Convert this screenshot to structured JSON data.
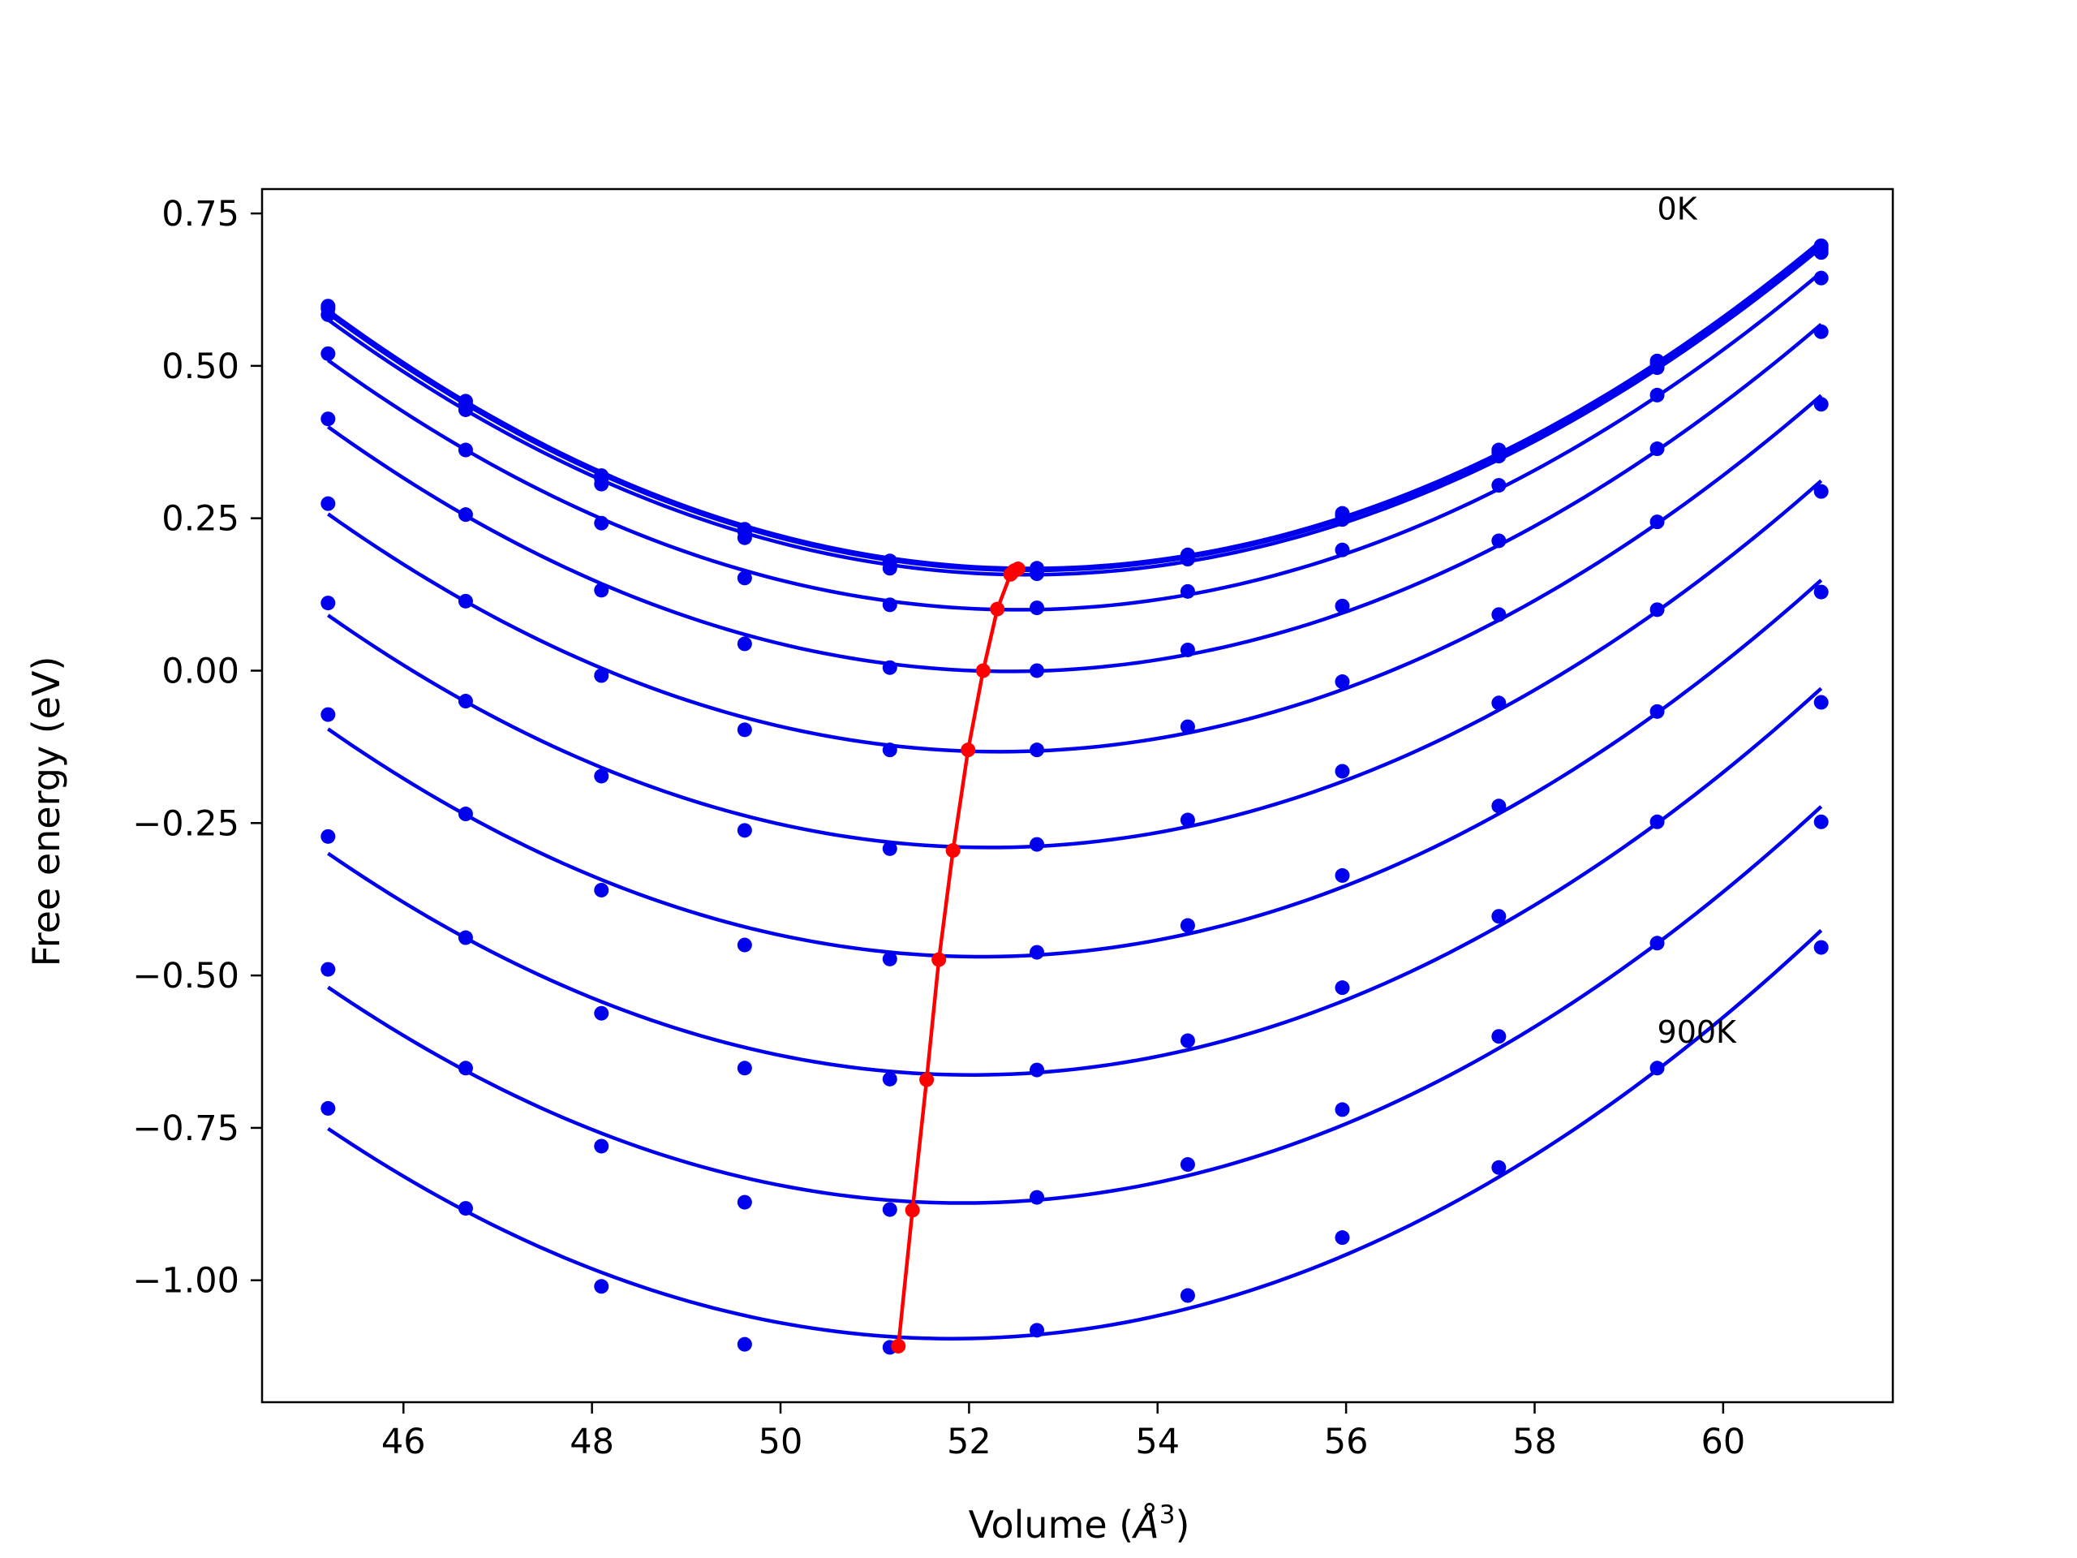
{
  "chart_data": {
    "type": "line",
    "title": "",
    "xlabel_text": "Volume (",
    "xlabel_unit_base": "Å",
    "xlabel_unit_exp": "3",
    "xlabel_close": ")",
    "ylabel": "Free energy (eV)",
    "xlim": [
      44.5,
      61.8
    ],
    "ylim": [
      -1.2,
      0.79
    ],
    "xticks": [
      46,
      48,
      50,
      52,
      54,
      56,
      58,
      60
    ],
    "xtick_labels": [
      "46",
      "48",
      "50",
      "52",
      "54",
      "56",
      "58",
      "60"
    ],
    "yticks": [
      0.75,
      0.5,
      0.25,
      0.0,
      -0.25,
      -0.5,
      -0.75,
      -1.0
    ],
    "ytick_labels": [
      "0.75",
      "0.50",
      "0.25",
      "0.00",
      "−0.25",
      "−0.50",
      "−0.75",
      "−1.00"
    ],
    "grid": false,
    "x_volumes": [
      45.2,
      46.66,
      48.1,
      49.62,
      51.16,
      52.72,
      54.32,
      55.96,
      57.62,
      59.3,
      61.04
    ],
    "series": [
      {
        "values": [
          0.598,
          0.442,
          0.32,
          0.232,
          0.18,
          0.168,
          0.19,
          0.258,
          0.362,
          0.508,
          0.697
        ]
      },
      {
        "values": [
          0.594,
          0.437,
          0.315,
          0.228,
          0.177,
          0.165,
          0.188,
          0.254,
          0.358,
          0.504,
          0.692
        ]
      },
      {
        "values": [
          0.584,
          0.428,
          0.306,
          0.218,
          0.168,
          0.159,
          0.183,
          0.248,
          0.352,
          0.497,
          0.686
        ]
      },
      {
        "values": [
          0.52,
          0.362,
          0.242,
          0.152,
          0.108,
          0.103,
          0.13,
          0.198,
          0.304,
          0.452,
          0.644
        ]
      },
      {
        "values": [
          0.413,
          0.256,
          0.132,
          0.044,
          0.005,
          0.0,
          0.034,
          0.106,
          0.213,
          0.364,
          0.556
        ]
      },
      {
        "values": [
          0.274,
          0.114,
          -0.008,
          -0.097,
          -0.13,
          -0.13,
          -0.092,
          -0.018,
          0.092,
          0.244,
          0.437
        ]
      },
      {
        "values": [
          0.111,
          -0.05,
          -0.173,
          -0.262,
          -0.292,
          -0.285,
          -0.245,
          -0.165,
          -0.053,
          0.1,
          0.294
        ]
      },
      {
        "values": [
          -0.072,
          -0.235,
          -0.36,
          -0.45,
          -0.473,
          -0.462,
          -0.418,
          -0.336,
          -0.222,
          -0.067,
          0.129
        ]
      },
      {
        "values": [
          -0.272,
          -0.438,
          -0.562,
          -0.652,
          -0.67,
          -0.655,
          -0.607,
          -0.52,
          -0.403,
          -0.248,
          -0.052
        ]
      },
      {
        "values": [
          -0.49,
          -0.652,
          -0.78,
          -0.872,
          -0.884,
          -0.864,
          -0.81,
          -0.72,
          -0.6,
          -0.447,
          -0.248
        ]
      },
      {
        "values": [
          -0.718,
          -0.882,
          -1.01,
          -1.105,
          -1.11,
          -1.082,
          -1.025,
          -0.93,
          -0.815,
          -0.652,
          -0.454
        ]
      }
    ],
    "minima": {
      "x": [
        52.52,
        52.48,
        52.44,
        52.3,
        52.15,
        51.99,
        51.83,
        51.68,
        51.55,
        51.4,
        51.25
      ],
      "y": [
        0.167,
        0.164,
        0.158,
        0.101,
        0.0,
        -0.13,
        -0.295,
        -0.474,
        -0.671,
        -0.885,
        -1.108
      ]
    },
    "annotations": [
      {
        "text": "0K",
        "x": 59.3,
        "y": 0.74
      },
      {
        "text": "900K",
        "x": 59.3,
        "y": -0.61
      }
    ],
    "colors": {
      "curves": "#0000ee",
      "minima": "#ff0000",
      "axes": "#000000"
    }
  }
}
